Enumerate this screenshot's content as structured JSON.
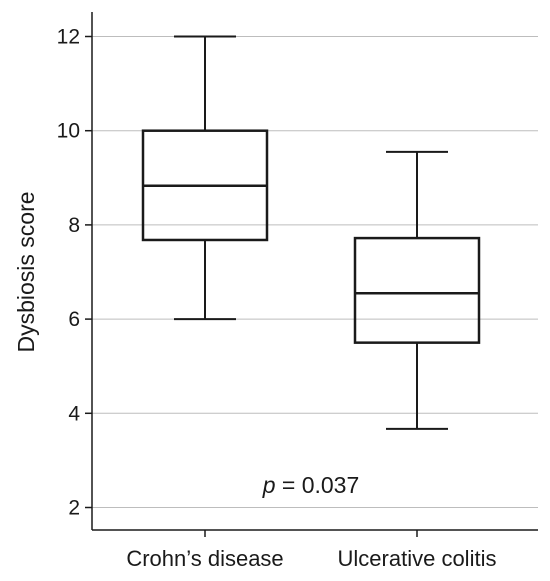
{
  "chart_data": {
    "type": "boxplot",
    "title": "",
    "xlabel": "",
    "ylabel": "Dysbiosis score",
    "ylim": [
      1.5,
      13
    ],
    "yticks": [
      "2",
      "4",
      "6",
      "8",
      "10",
      "12"
    ],
    "grid": true,
    "categories": [
      "Crohn’s disease",
      "Ulcerative colitis"
    ],
    "boxes": [
      {
        "min": 6.0,
        "q1": 7.68,
        "median": 8.83,
        "q3": 10.0,
        "max": 12.0
      },
      {
        "min": 3.67,
        "q1": 5.5,
        "median": 6.55,
        "q3": 7.72,
        "max": 9.55
      }
    ],
    "annotation": {
      "italic": "p",
      "text": " = 0.037"
    },
    "colors": {
      "box": "#1a1a1a",
      "grid": "#bdbdbd"
    }
  }
}
